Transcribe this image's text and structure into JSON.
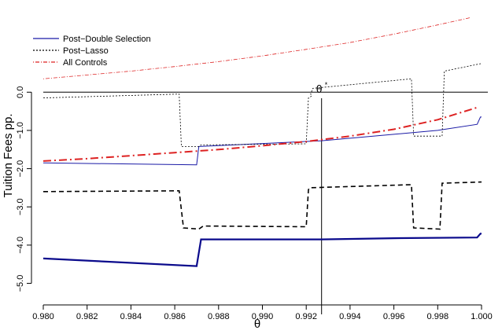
{
  "chart_data": {
    "type": "line",
    "title": "",
    "xlabel": "θ",
    "ylabel": "Tuition Fees pp.",
    "xlim": [
      0.98,
      1.0
    ],
    "ylim": [
      -5.4,
      2.0
    ],
    "grid": false,
    "legend_position": "top-left",
    "x_ticks": [
      0.98,
      0.982,
      0.984,
      0.986,
      0.988,
      0.99,
      0.992,
      0.994,
      0.996,
      0.998,
      1.0
    ],
    "x_tick_labels": [
      "0.980",
      "0.982",
      "0.984",
      "0.986",
      "0.988",
      "0.990",
      "0.992",
      "0.994",
      "0.996",
      "0.998",
      "1.000"
    ],
    "y_ticks": [
      0,
      -1,
      -2,
      -3,
      -4,
      -5
    ],
    "y_tick_labels": [
      "0.0",
      "−1.0",
      "−2.0",
      "−3.0",
      "−4.0",
      "−5.0"
    ],
    "annotations": [
      {
        "text": "θ",
        "superscript": "*",
        "x": 0.9927,
        "kind": "vertical-line"
      }
    ],
    "hline_y": 0,
    "vline_x": 0.9927,
    "series": [
      {
        "name": "Post−Double Selection",
        "role": "estimate",
        "color": "#1a1aa6",
        "dash": "solid",
        "width": 1,
        "points": [
          [
            0.98,
            -1.85
          ],
          [
            0.987,
            -1.9
          ],
          [
            0.9871,
            -1.42
          ],
          [
            0.9927,
            -1.27
          ],
          [
            0.998,
            -1.0
          ],
          [
            0.9998,
            -0.84
          ],
          [
            0.99995,
            -0.65
          ],
          [
            1.0,
            -0.65
          ]
        ]
      },
      {
        "name": "Post−Lasso",
        "role": "estimate",
        "color": "#000000",
        "dash": "2,2",
        "width": 0.8,
        "points": [
          [
            0.98,
            -0.15
          ],
          [
            0.9862,
            -0.05
          ],
          [
            0.9863,
            -1.42
          ],
          [
            0.9871,
            -1.42
          ],
          [
            0.9872,
            -1.38
          ],
          [
            0.992,
            -1.35
          ],
          [
            0.9921,
            -0.15
          ],
          [
            0.99225,
            -0.1
          ],
          [
            0.9922,
            -0.05
          ],
          [
            0.9923,
            0.1
          ],
          [
            0.9968,
            0.35
          ],
          [
            0.9969,
            -1.15
          ],
          [
            0.9982,
            -1.15
          ],
          [
            0.9983,
            0.55
          ],
          [
            1.0,
            0.75
          ]
        ]
      },
      {
        "name": "All Controls",
        "role": "estimate",
        "color": "#dd2222",
        "dash": "1,2,5,2",
        "width": 0.8,
        "points": [
          [
            0.98,
            0.35
          ],
          [
            0.982,
            0.45
          ],
          [
            0.984,
            0.55
          ],
          [
            0.986,
            0.67
          ],
          [
            0.988,
            0.8
          ],
          [
            0.99,
            0.95
          ],
          [
            0.992,
            1.12
          ],
          [
            0.994,
            1.3
          ],
          [
            0.996,
            1.52
          ],
          [
            0.998,
            1.76
          ],
          [
            0.9995,
            1.95
          ]
        ]
      },
      {
        "name": "",
        "role": "lower-bound",
        "color": "#0a0a8c",
        "dash": "solid",
        "width": 2.2,
        "points": [
          [
            0.98,
            -4.35
          ],
          [
            0.987,
            -4.55
          ],
          [
            0.9872,
            -3.85
          ],
          [
            0.9927,
            -3.85
          ],
          [
            0.996,
            -3.82
          ],
          [
            0.9998,
            -3.8
          ],
          [
            0.99995,
            -3.7
          ],
          [
            1.0,
            -3.7
          ]
        ]
      },
      {
        "name": "",
        "role": "lower-bound",
        "color": "#000000",
        "dash": "6,4",
        "width": 1.6,
        "points": [
          [
            0.98,
            -2.6
          ],
          [
            0.9862,
            -2.58
          ],
          [
            0.9864,
            -3.55
          ],
          [
            0.9871,
            -3.58
          ],
          [
            0.9873,
            -3.5
          ],
          [
            0.992,
            -3.52
          ],
          [
            0.9921,
            -2.55
          ],
          [
            0.99215,
            -2.5
          ],
          [
            0.9968,
            -2.42
          ],
          [
            0.9969,
            -3.55
          ],
          [
            0.9981,
            -3.58
          ],
          [
            0.9982,
            -2.38
          ],
          [
            1.0,
            -2.35
          ]
        ]
      },
      {
        "name": "",
        "role": "lower-bound",
        "color": "#dd2222",
        "dash": "10,4,2,4",
        "width": 2,
        "points": [
          [
            0.98,
            -1.8
          ],
          [
            0.982,
            -1.74
          ],
          [
            0.984,
            -1.66
          ],
          [
            0.986,
            -1.58
          ],
          [
            0.988,
            -1.5
          ],
          [
            0.99,
            -1.4
          ],
          [
            0.992,
            -1.29
          ],
          [
            0.994,
            -1.15
          ],
          [
            0.996,
            -0.97
          ],
          [
            0.998,
            -0.72
          ],
          [
            0.9998,
            -0.4
          ]
        ]
      }
    ]
  }
}
